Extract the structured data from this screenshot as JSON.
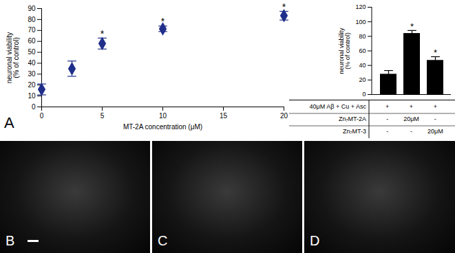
{
  "panels": [
    "A",
    "B",
    "C",
    "D"
  ],
  "chart_data": [
    {
      "type": "scatter",
      "x": [
        0,
        2.5,
        5,
        10,
        20
      ],
      "values": [
        16,
        35,
        58,
        71.5,
        83.5
      ],
      "errors": [
        5,
        7,
        5,
        2.5,
        4
      ],
      "significance": [
        null,
        null,
        "*",
        "*",
        "*"
      ],
      "color": "#1f2f8a",
      "marker": "diamond",
      "xlabel": "MT-2A concentration (μM)",
      "ylabel": "neuronal viability\n(% of control)",
      "xlim": [
        0,
        20
      ],
      "xticks": [
        0,
        5,
        10,
        15,
        20
      ],
      "ylim": [
        0,
        90
      ],
      "yticks": [
        0,
        10,
        20,
        30,
        40,
        50,
        60,
        70,
        80,
        90
      ],
      "grid": false
    },
    {
      "type": "bar",
      "categories": [
        null,
        null,
        null
      ],
      "values": [
        28,
        84,
        47
      ],
      "errors": [
        5,
        4,
        5
      ],
      "significance": [
        null,
        "*",
        "*"
      ],
      "color": "#000000",
      "ylabel": "neuronal viability\n(% of control)",
      "ylim": [
        0,
        120
      ],
      "yticks": [
        0,
        20,
        40,
        60,
        80,
        100,
        120
      ],
      "grid": false,
      "tick_labels": "y",
      "table": {
        "rows": [
          {
            "label": "40μM Aβ + Cu + Asc",
            "cells": [
              "+",
              "+",
              "+"
            ]
          },
          {
            "label": "Zn₇MT-2A",
            "cells": [
              "-",
              "20μM",
              "-"
            ]
          },
          {
            "label": "Zn₇MT-3",
            "cells": [
              "-",
              "-",
              "20μM"
            ]
          }
        ]
      }
    }
  ]
}
